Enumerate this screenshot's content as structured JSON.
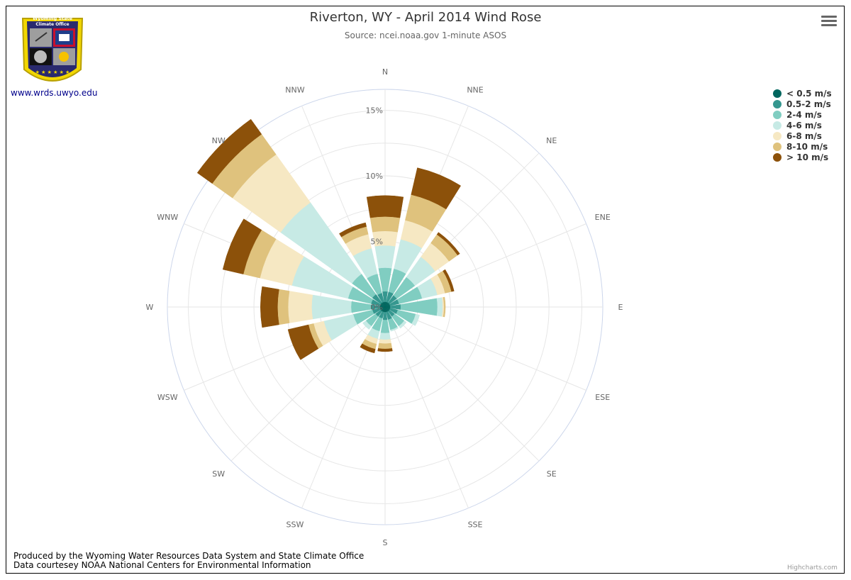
{
  "header": {
    "title": "Riverton, WY - April 2014 Wind Rose",
    "subtitle": "Source: ncei.noaa.gov 1-minute ASOS"
  },
  "logo": {
    "text_line1": "Wyoming State",
    "text_line2": "Climate Office",
    "link": "www.wrds.uwyo.edu"
  },
  "footer": {
    "line1": "Produced by the Wyoming Water Resources Data System and State Climate Office",
    "line2": "Data courtesey NOAA National Centers for Environmental Information",
    "credits": "Highcharts.com"
  },
  "icons": {
    "menu": "hamburger-menu-icon"
  },
  "chart_data": {
    "type": "stacked-polar-bar",
    "title": "Riverton, WY - April 2014 Wind Rose",
    "subtitle": "Source: ncei.noaa.gov 1-minute ASOS",
    "categories": [
      "N",
      "NNE",
      "NE",
      "ENE",
      "E",
      "ESE",
      "SE",
      "SSE",
      "S",
      "SSW",
      "SW",
      "WSW",
      "W",
      "WNW",
      "NW",
      "NNW"
    ],
    "radial_ticks": [
      "0%",
      "5%",
      "10%",
      "15%"
    ],
    "ylim": [
      0,
      16.6
    ],
    "legend_position": "top-right",
    "grid": true,
    "series": [
      {
        "name": "< 0.5 m/s",
        "color": "#01665e",
        "values": [
          0.4,
          0.4,
          0.4,
          0.4,
          0.4,
          0.4,
          0.4,
          0.4,
          0.4,
          0.4,
          0.4,
          0.4,
          0.4,
          0.4,
          0.4,
          0.4
        ]
      },
      {
        "name": "0.5-2 m/s",
        "color": "#35978f",
        "values": [
          0.8,
          0.8,
          0.7,
          0.7,
          0.8,
          0.6,
          0.5,
          0.6,
          0.6,
          0.5,
          0.5,
          0.6,
          0.7,
          0.7,
          0.8,
          0.7
        ]
      },
      {
        "name": "2-4 m/s",
        "color": "#80cdc1",
        "values": [
          1.8,
          1.8,
          1.7,
          1.8,
          2.8,
          1.4,
          0.9,
          0.8,
          1.0,
          1.0,
          0.9,
          1.5,
          1.5,
          1.8,
          1.9,
          1.5
        ]
      },
      {
        "name": "4-6 m/s",
        "color": "#c7eae5",
        "values": [
          1.7,
          2.3,
          1.9,
          1.2,
          0.4,
          0.3,
          0.2,
          0.1,
          0.5,
          0.6,
          0.3,
          2.3,
          3.0,
          4.4,
          6.7,
          2.0
        ]
      },
      {
        "name": "6-8 m/s",
        "color": "#f6e8c3",
        "values": [
          1.1,
          1.5,
          1.3,
          0.6,
          0.1,
          0,
          0,
          0,
          0.3,
          0.4,
          0,
          0.8,
          1.8,
          2.5,
          4.5,
          1.1
        ]
      },
      {
        "name": "8-10 m/s",
        "color": "#dfc27d",
        "values": [
          1.1,
          2.0,
          0.8,
          0.5,
          0.1,
          0,
          0,
          0,
          0.4,
          0.4,
          0,
          0.4,
          0.8,
          1.3,
          1.9,
          0.6
        ]
      },
      {
        "name": "> 10 m/s",
        "color": "#8c510a",
        "values": [
          1.6,
          2.1,
          0.2,
          0.2,
          0,
          0,
          0,
          0,
          0.2,
          0.3,
          0,
          1.6,
          1.3,
          1.6,
          1.4,
          0.3
        ]
      }
    ]
  }
}
